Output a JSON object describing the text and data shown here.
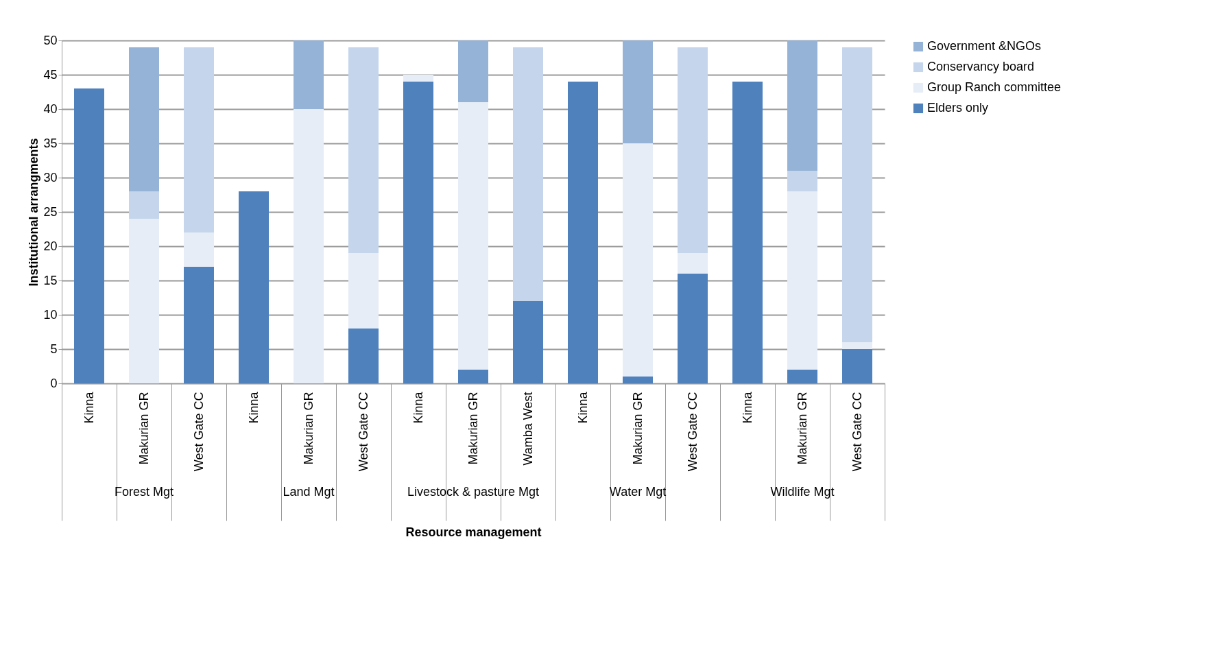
{
  "chart_data": {
    "type": "bar",
    "stacked": true,
    "xlabel": "Resource management",
    "ylabel": "Institutional arrangments",
    "categories": [
      "Kinna",
      "Makurian GR",
      "West Gate CC",
      "Kinna",
      "Makurian GR",
      "West Gate CC",
      "Kinna",
      "Makurian GR",
      "Wamba West",
      "Kinna",
      "Makurian GR",
      "West Gate CC",
      "Kinna",
      "Makurian GR",
      "West Gate CC"
    ],
    "annotations": [
      "Forest Mgt",
      "Land Mgt",
      "Livestock & pasture Mgt",
      "Water Mgt",
      "Wildlife Mgt"
    ],
    "series": [
      {
        "name": "Elders only",
        "color": "#4f81bd",
        "values": [
          43,
          0,
          17,
          28,
          0,
          8,
          44,
          2,
          12,
          44,
          1,
          16,
          44,
          2,
          5
        ]
      },
      {
        "name": "Group Ranch committee",
        "color": "#e6edf7",
        "values": [
          0,
          24,
          5,
          0,
          40,
          11,
          1,
          39,
          0,
          0,
          34,
          3,
          0,
          26,
          1
        ]
      },
      {
        "name": "Conservancy board",
        "color": "#c5d6ec",
        "values": [
          0,
          4,
          27,
          0,
          0,
          30,
          0,
          0,
          37,
          0,
          0,
          30,
          0,
          3,
          43
        ]
      },
      {
        "name": "Government &NGOs",
        "color": "#95b3d7",
        "values": [
          0,
          21,
          0,
          0,
          10,
          0,
          0,
          9,
          0,
          0,
          15,
          0,
          0,
          19,
          0
        ]
      }
    ],
    "ylim": [
      0,
      50
    ],
    "yticks": [
      0,
      5,
      10,
      15,
      20,
      25,
      30,
      35,
      40,
      45,
      50
    ],
    "grid": "y",
    "legend": "right"
  }
}
